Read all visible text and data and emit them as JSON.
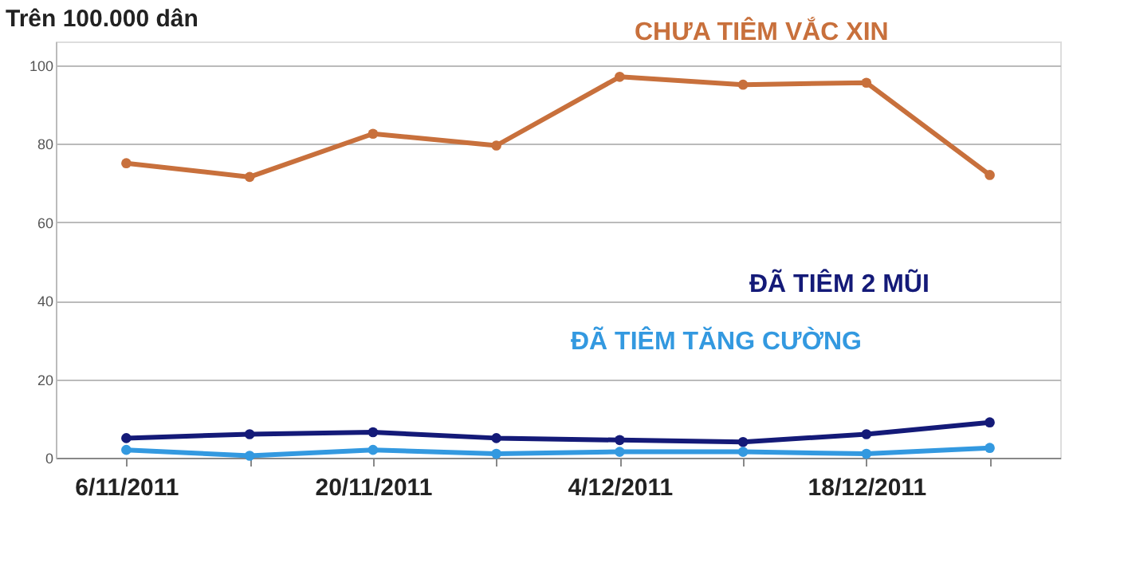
{
  "chart_data": {
    "type": "line",
    "ylabel": "Trên 100.000 dân",
    "x": [
      "2011-11-06",
      "2011-11-13",
      "2011-11-20",
      "2011-11-27",
      "2011-12-04",
      "2011-12-11",
      "2011-12-18",
      "2011-12-25"
    ],
    "series": [
      {
        "name": "CHƯA TIÊM VẮC XIN",
        "color": "#c8703c",
        "values": [
          75,
          71.5,
          82.5,
          79.5,
          97,
          95,
          95.5,
          72
        ]
      },
      {
        "name": "ĐÃ TIÊM 2 MŨI",
        "color": "#141a78",
        "values": [
          5,
          6,
          6.5,
          5,
          4.5,
          4,
          6,
          9
        ]
      },
      {
        "name": "ĐÃ TIÊM TĂNG CƯỜNG",
        "color": "#3399e0",
        "values": [
          2,
          0.5,
          2,
          1,
          1.5,
          1.5,
          1,
          2.5
        ]
      }
    ],
    "xlim": [
      "2011-11-02",
      "2011-12-29"
    ],
    "xticks": [
      {
        "value": "2011-11-06",
        "label": "6/11/2011"
      },
      {
        "value": "2011-11-13",
        "label": null
      },
      {
        "value": "2011-11-20",
        "label": "20/11/2011"
      },
      {
        "value": "2011-11-27",
        "label": null
      },
      {
        "value": "2011-12-04",
        "label": "4/12/2011"
      },
      {
        "value": "2011-12-11",
        "label": null
      },
      {
        "value": "2011-12-18",
        "label": "18/12/2011"
      },
      {
        "value": "2011-12-25",
        "label": null
      }
    ],
    "ylim": [
      0,
      106
    ],
    "yticks": [
      0,
      20,
      40,
      60,
      80,
      100
    ],
    "grid": "y",
    "legend": false,
    "marker": "circle",
    "line_style": "solid"
  }
}
